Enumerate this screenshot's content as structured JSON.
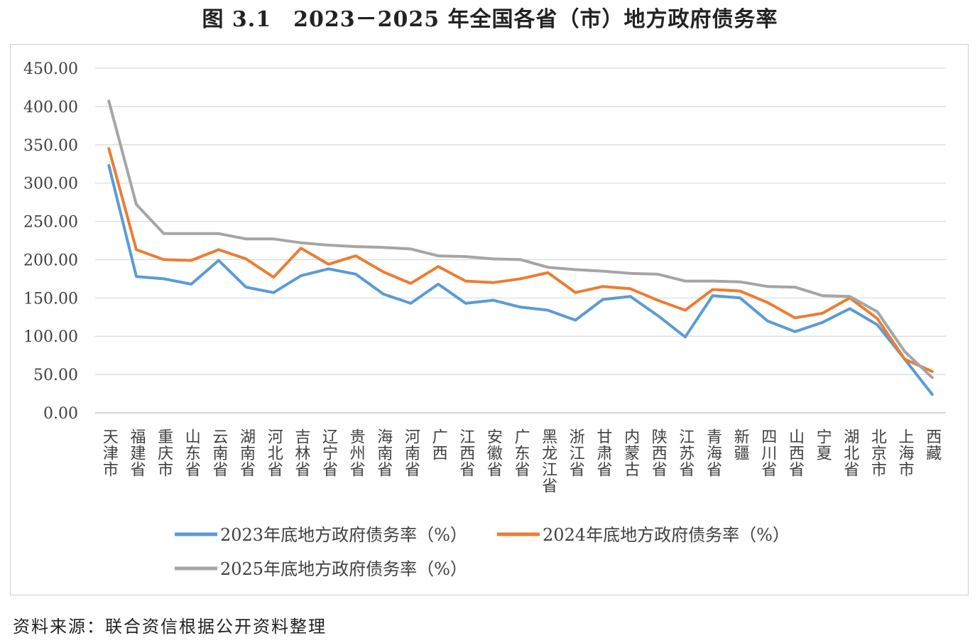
{
  "title": "图 3.1　2023－2025 年全国各省（市）地方政府债务率",
  "source": "资料来源：联合资信根据公开资料整理",
  "chart_data": {
    "type": "line",
    "categories": [
      "天津市",
      "福建省",
      "重庆市",
      "山东省",
      "云南省",
      "湖南省",
      "河北省",
      "吉林省",
      "辽宁省",
      "贵州省",
      "海南省",
      "河南省",
      "广西",
      "江西省",
      "安徽省",
      "广东省",
      "黑龙江省",
      "浙江省",
      "甘肃省",
      "内蒙古",
      "陕西省",
      "江苏省",
      "青海省",
      "新疆",
      "四川省",
      "山西省",
      "宁夏",
      "湖北省",
      "北京市",
      "上海市",
      "西藏"
    ],
    "series": [
      {
        "name": "2023年底地方政府债务率（%）",
        "color": "#5b9bd5",
        "values": [
          323,
          178,
          175,
          168,
          199,
          164,
          157,
          179,
          188,
          181,
          155,
          143,
          168,
          143,
          147,
          138,
          134,
          121,
          148,
          152,
          127,
          99,
          153,
          150,
          120,
          106,
          118,
          136,
          115,
          70,
          24
        ]
      },
      {
        "name": "2024年底地方政府债务率（%）",
        "color": "#ed7d31",
        "values": [
          345,
          213,
          200,
          199,
          213,
          201,
          177,
          215,
          194,
          205,
          184,
          169,
          191,
          172,
          170,
          175,
          183,
          157,
          165,
          162,
          147,
          134,
          161,
          159,
          144,
          124,
          130,
          150,
          123,
          70,
          54
        ]
      },
      {
        "name": "2025年底地方政府债务率（%）",
        "color": "#a5a5a5",
        "values": [
          407,
          272,
          234,
          234,
          234,
          227,
          227,
          222,
          219,
          217,
          216,
          214,
          205,
          204,
          201,
          200,
          190,
          187,
          185,
          182,
          181,
          172,
          172,
          171,
          165,
          164,
          153,
          152,
          132,
          80,
          46
        ]
      }
    ],
    "ylim": [
      0,
      450
    ],
    "yticks": [
      "450.00",
      "400.00",
      "350.00",
      "300.00",
      "250.00",
      "200.00",
      "150.00",
      "100.00",
      "50.00",
      "0.00"
    ],
    "grid": true,
    "legend": "bottom"
  }
}
